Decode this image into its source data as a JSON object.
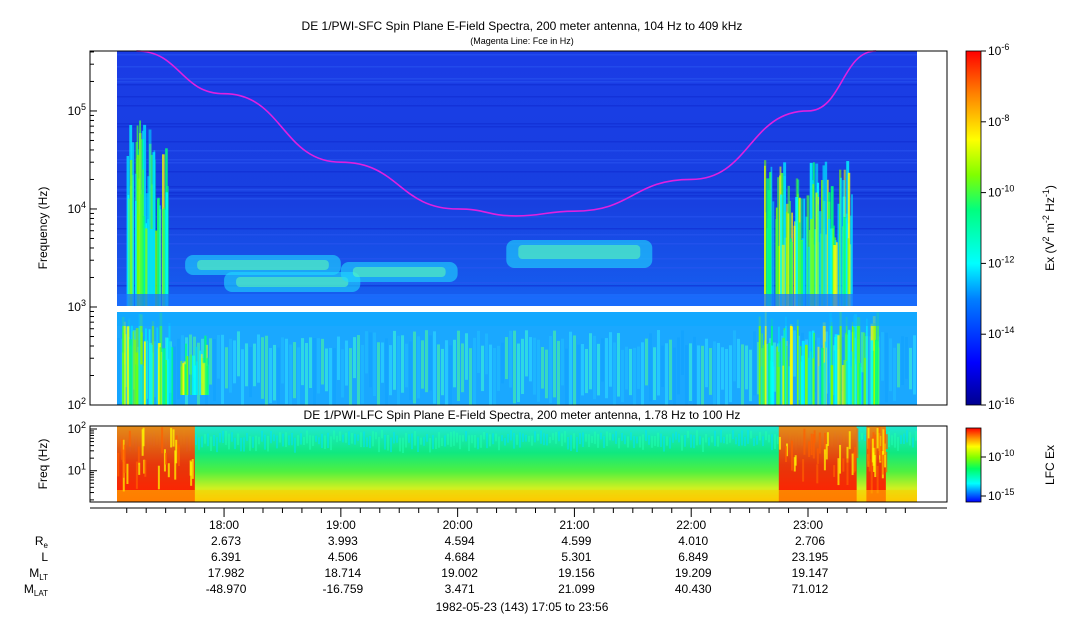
{
  "chart_data": [
    {
      "type": "heatmap",
      "title": "DE 1/PWI-SFC  Spin Plane E-Field Spectra, 200 meter antenna, 104 Hz to 409 kHz",
      "subtitle": "(Magenta Line: Fce in Hz)",
      "ylabel": "Frequency (Hz)",
      "yscale": "log",
      "ylim": [
        100,
        409000
      ],
      "y_ticks": [
        {
          "base": "10",
          "exp": "2"
        },
        {
          "base": "10",
          "exp": "3"
        },
        {
          "base": "10",
          "exp": "4"
        },
        {
          "base": "10",
          "exp": "5"
        }
      ],
      "colorbar": {
        "label_parts": [
          "Ex (V",
          "2",
          " m",
          "-2",
          " Hz",
          "-1",
          ")"
        ],
        "range": [
          1e-16,
          1e-06
        ],
        "scale": "log",
        "ticks": [
          {
            "base": "10",
            "exp": "-6"
          },
          {
            "base": "10",
            "exp": "-8"
          },
          {
            "base": "10",
            "exp": "-10"
          },
          {
            "base": "10",
            "exp": "-12"
          },
          {
            "base": "10",
            "exp": "-14"
          },
          {
            "base": "10",
            "exp": "-16"
          }
        ]
      },
      "fce_line": {
        "color": "#e020e0",
        "points": [
          [
            "17:15",
            409000
          ],
          [
            "18:00",
            150000
          ],
          [
            "19:00",
            30000
          ],
          [
            "20:00",
            10000
          ],
          [
            "20:30",
            8500
          ],
          [
            "21:00",
            9500
          ],
          [
            "22:00",
            20000
          ],
          [
            "23:00",
            100000
          ],
          [
            "23:35",
            409000
          ]
        ]
      },
      "data_gap_hz": [
        900,
        1000
      ]
    },
    {
      "type": "heatmap",
      "title": "DE 1/PWI-LFC  Spin Plane E-Field Spectra, 200 meter antenna, 1.78 Hz to 100 Hz",
      "ylabel": "Freq (Hz)",
      "yscale": "log",
      "ylim": [
        1.78,
        100
      ],
      "y_ticks": [
        {
          "base": "10",
          "exp": "2"
        },
        {
          "base": "10",
          "exp": "1"
        }
      ],
      "colorbar": {
        "label": "LFC Ex",
        "scale": "log",
        "ticks": [
          {
            "base": "10",
            "exp": "-10"
          },
          {
            "base": "10",
            "exp": "-15"
          }
        ]
      }
    }
  ],
  "x_axis": {
    "range": [
      "17:05",
      "23:56"
    ],
    "major_ticks": [
      "18:00",
      "19:00",
      "20:00",
      "21:00",
      "22:00",
      "23:00"
    ]
  },
  "ephemeris": {
    "rows": [
      {
        "label": "R",
        "sub": "e",
        "values": [
          "2.673",
          "3.993",
          "4.594",
          "4.599",
          "4.010",
          "2.706"
        ]
      },
      {
        "label": "L",
        "sub": "",
        "values": [
          "6.391",
          "4.506",
          "4.684",
          "5.301",
          "6.849",
          "23.195"
        ]
      },
      {
        "label": "M",
        "sub": "LT",
        "values": [
          "17.982",
          "18.714",
          "19.002",
          "19.156",
          "19.209",
          "19.147"
        ]
      },
      {
        "label": "M",
        "sub": "LAT",
        "values": [
          "-48.970",
          "-16.759",
          "3.471",
          "21.099",
          "40.430",
          "71.012"
        ]
      }
    ]
  },
  "footer": "1982-05-23 (143) 17:05 to 23:56"
}
